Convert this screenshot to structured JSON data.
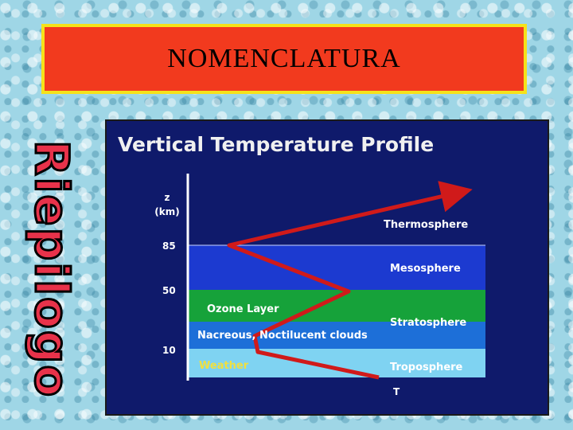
{
  "slide": {
    "title": "NOMENCLATURA",
    "side_label": "Riepilogo"
  },
  "diagram": {
    "heading": "Vertical Temperature Profile",
    "axis_y_label": "z",
    "axis_y_unit": "(km)",
    "axis_x_label": "T",
    "y_ticks": [
      "85",
      "50",
      "10"
    ],
    "layers": {
      "thermosphere": "Thermosphere",
      "mesosphere": "Mesosphere",
      "ozone": "Ozone Layer",
      "stratosphere": "Stratosphere",
      "clouds": "Nacreous, Noctilucent clouds",
      "weather": "Weather",
      "troposphere": "Troposphere"
    },
    "colors": {
      "background": "#0f1a6b",
      "mesosphere": "#1c3ad0",
      "ozone": "#16a23a",
      "stratosphere": "#1d6fd8",
      "troposphere": "#7fd3f2",
      "profile_line": "#d01a1a",
      "heading_text": "#f0f0f0"
    }
  }
}
